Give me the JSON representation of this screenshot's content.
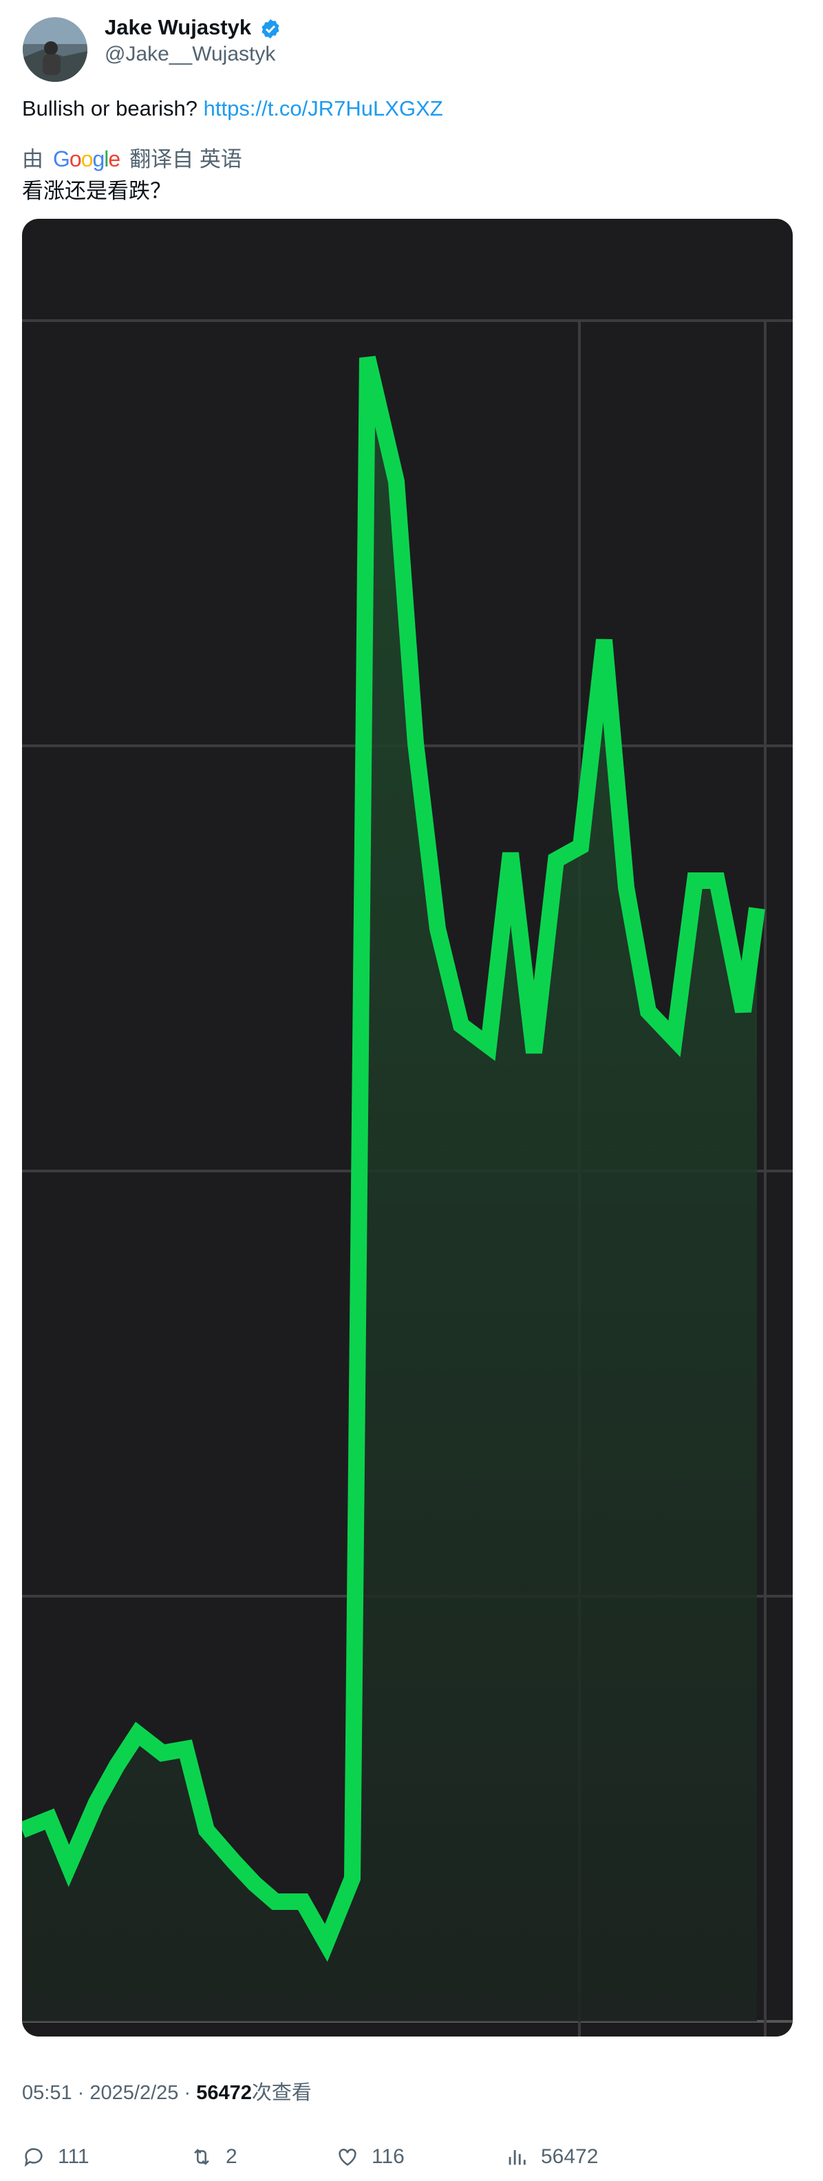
{
  "user": {
    "name": "Jake Wujastyk",
    "handle": "@Jake__Wujastyk"
  },
  "tweet": {
    "text": "Bullish or bearish?",
    "link": "https://t.co/JR7HuLXGXZ"
  },
  "translation": {
    "prefix": "由",
    "provider": "Google",
    "suffix": "翻译自",
    "language": "英语",
    "text": "看涨还是看跌？"
  },
  "meta": {
    "time": "05:51",
    "separator": "·",
    "date": "2025/2/25",
    "views_suffix": "次查看"
  },
  "stats": {
    "replies": 111,
    "retweets": 2,
    "likes": 116,
    "views": 56472
  }
}
